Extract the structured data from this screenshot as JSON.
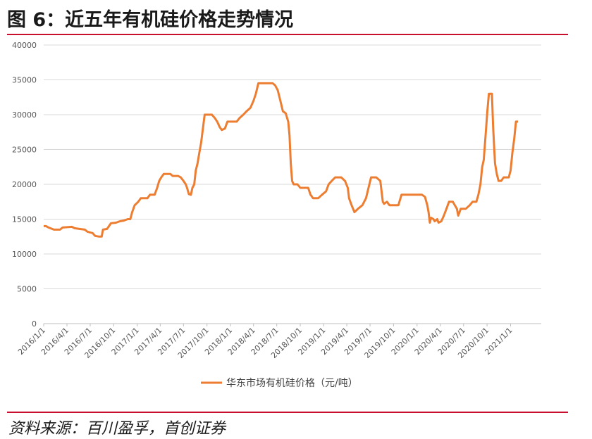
{
  "figure": {
    "title": "图 6：近五年有机硅价格走势情况",
    "source": "资料来源：百川盈孚，首创证券"
  },
  "colors": {
    "line": "#ed7d31",
    "rule": "#c8102e",
    "grid": "#d9d9d9"
  },
  "chart_data": {
    "type": "line",
    "ylim": [
      0,
      40000
    ],
    "yticks": [
      0,
      5000,
      10000,
      15000,
      20000,
      25000,
      30000,
      35000,
      40000
    ],
    "xlim": [
      "2016-01-01",
      "2021-05-01"
    ],
    "xticks": [
      "2016/1/1",
      "2016/4/1",
      "2016/7/1",
      "2016/10/1",
      "2017/1/1",
      "2017/4/1",
      "2017/7/1",
      "2017/10/1",
      "2018/1/1",
      "2018/4/1",
      "2018/7/1",
      "2018/10/1",
      "2019/1/1",
      "2019/4/1",
      "2019/7/1",
      "2019/10/1",
      "2020/1/1",
      "2020/4/1",
      "2020/7/1",
      "2020/10/1",
      "2021/1/1"
    ],
    "legend": "bottom",
    "series": [
      {
        "name": "华东市场有机硅价格（元/吨）",
        "points": [
          [
            "2016-01-01",
            14000
          ],
          [
            "2016-01-10",
            14000
          ],
          [
            "2016-01-20",
            13800
          ],
          [
            "2016-02-10",
            13500
          ],
          [
            "2016-03-05",
            13500
          ],
          [
            "2016-03-15",
            13800
          ],
          [
            "2016-04-20",
            13900
          ],
          [
            "2016-05-01",
            13700
          ],
          [
            "2016-05-20",
            13600
          ],
          [
            "2016-06-10",
            13500
          ],
          [
            "2016-06-20",
            13200
          ],
          [
            "2016-07-10",
            13000
          ],
          [
            "2016-07-20",
            12600
          ],
          [
            "2016-08-05",
            12500
          ],
          [
            "2016-08-15",
            12500
          ],
          [
            "2016-08-20",
            13500
          ],
          [
            "2016-09-05",
            13600
          ],
          [
            "2016-09-20",
            14400
          ],
          [
            "2016-10-10",
            14500
          ],
          [
            "2016-10-25",
            14700
          ],
          [
            "2016-11-10",
            14800
          ],
          [
            "2016-11-25",
            15000
          ],
          [
            "2016-12-05",
            15000
          ],
          [
            "2016-12-12",
            16000
          ],
          [
            "2016-12-22",
            17000
          ],
          [
            "2017-01-05",
            17500
          ],
          [
            "2017-01-15",
            18000
          ],
          [
            "2017-02-10",
            18000
          ],
          [
            "2017-02-20",
            18500
          ],
          [
            "2017-03-10",
            18500
          ],
          [
            "2017-03-20",
            19500
          ],
          [
            "2017-03-28",
            20500
          ],
          [
            "2017-04-05",
            21000
          ],
          [
            "2017-04-15",
            21500
          ],
          [
            "2017-05-10",
            21500
          ],
          [
            "2017-05-20",
            21200
          ],
          [
            "2017-06-10",
            21200
          ],
          [
            "2017-06-20",
            21000
          ],
          [
            "2017-07-01",
            20500
          ],
          [
            "2017-07-10",
            20000
          ],
          [
            "2017-07-15",
            19500
          ],
          [
            "2017-07-22",
            18600
          ],
          [
            "2017-07-30",
            18500
          ],
          [
            "2017-08-05",
            19500
          ],
          [
            "2017-08-12",
            20000
          ],
          [
            "2017-08-18",
            22000
          ],
          [
            "2017-08-25",
            23000
          ],
          [
            "2017-09-01",
            24500
          ],
          [
            "2017-09-08",
            26000
          ],
          [
            "2017-09-15",
            28000
          ],
          [
            "2017-09-22",
            30000
          ],
          [
            "2017-10-20",
            30000
          ],
          [
            "2017-11-01",
            29500
          ],
          [
            "2017-11-10",
            29000
          ],
          [
            "2017-11-20",
            28200
          ],
          [
            "2017-11-28",
            27800
          ],
          [
            "2017-12-10",
            28000
          ],
          [
            "2017-12-20",
            29000
          ],
          [
            "2018-01-10",
            29000
          ],
          [
            "2018-01-25",
            29000
          ],
          [
            "2018-02-05",
            29500
          ],
          [
            "2018-02-20",
            30000
          ],
          [
            "2018-03-05",
            30500
          ],
          [
            "2018-03-20",
            31000
          ],
          [
            "2018-04-01",
            32000
          ],
          [
            "2018-04-10",
            33000
          ],
          [
            "2018-04-20",
            34500
          ],
          [
            "2018-05-15",
            34500
          ],
          [
            "2018-06-15",
            34500
          ],
          [
            "2018-06-25",
            34200
          ],
          [
            "2018-07-05",
            33500
          ],
          [
            "2018-07-15",
            32000
          ],
          [
            "2018-07-25",
            30500
          ],
          [
            "2018-08-05",
            30200
          ],
          [
            "2018-08-15",
            29000
          ],
          [
            "2018-08-20",
            27000
          ],
          [
            "2018-08-25",
            23000
          ],
          [
            "2018-08-30",
            20500
          ],
          [
            "2018-09-05",
            20000
          ],
          [
            "2018-09-20",
            20000
          ],
          [
            "2018-10-01",
            19500
          ],
          [
            "2018-11-01",
            19500
          ],
          [
            "2018-11-10",
            18500
          ],
          [
            "2018-11-20",
            18000
          ],
          [
            "2018-12-10",
            18000
          ],
          [
            "2018-12-25",
            18500
          ],
          [
            "2019-01-10",
            19000
          ],
          [
            "2019-01-20",
            20000
          ],
          [
            "2019-02-01",
            20500
          ],
          [
            "2019-02-15",
            21000
          ],
          [
            "2019-03-10",
            21000
          ],
          [
            "2019-03-25",
            20500
          ],
          [
            "2019-04-05",
            19500
          ],
          [
            "2019-04-10",
            18000
          ],
          [
            "2019-04-20",
            17000
          ],
          [
            "2019-05-01",
            16000
          ],
          [
            "2019-05-15",
            16500
          ],
          [
            "2019-06-01",
            17000
          ],
          [
            "2019-06-15",
            18000
          ],
          [
            "2019-06-25",
            19500
          ],
          [
            "2019-07-05",
            21000
          ],
          [
            "2019-07-25",
            21000
          ],
          [
            "2019-08-10",
            20500
          ],
          [
            "2019-08-20",
            17500
          ],
          [
            "2019-08-25",
            17200
          ],
          [
            "2019-09-05",
            17500
          ],
          [
            "2019-09-15",
            17000
          ],
          [
            "2019-10-20",
            17000
          ],
          [
            "2019-11-01",
            18500
          ],
          [
            "2019-12-15",
            18500
          ],
          [
            "2020-01-20",
            18500
          ],
          [
            "2020-02-01",
            18200
          ],
          [
            "2020-02-10",
            17000
          ],
          [
            "2020-02-15",
            16000
          ],
          [
            "2020-02-20",
            14500
          ],
          [
            "2020-02-25",
            15200
          ],
          [
            "2020-03-05",
            15000
          ],
          [
            "2020-03-10",
            14700
          ],
          [
            "2020-03-20",
            15000
          ],
          [
            "2020-03-25",
            14500
          ],
          [
            "2020-04-05",
            14700
          ],
          [
            "2020-04-15",
            15500
          ],
          [
            "2020-04-25",
            16500
          ],
          [
            "2020-05-05",
            17500
          ],
          [
            "2020-05-20",
            17500
          ],
          [
            "2020-06-05",
            16500
          ],
          [
            "2020-06-10",
            15500
          ],
          [
            "2020-06-20",
            16500
          ],
          [
            "2020-07-10",
            16500
          ],
          [
            "2020-07-25",
            17000
          ],
          [
            "2020-08-05",
            17500
          ],
          [
            "2020-08-20",
            17500
          ],
          [
            "2020-08-28",
            18500
          ],
          [
            "2020-09-05",
            20000
          ],
          [
            "2020-09-12",
            22500
          ],
          [
            "2020-09-18",
            23500
          ],
          [
            "2020-09-25",
            27000
          ],
          [
            "2020-10-02",
            30500
          ],
          [
            "2020-10-08",
            33000
          ],
          [
            "2020-10-20",
            33000
          ],
          [
            "2020-10-25",
            28000
          ],
          [
            "2020-11-01",
            23000
          ],
          [
            "2020-11-08",
            21500
          ],
          [
            "2020-11-15",
            20500
          ],
          [
            "2020-11-25",
            20500
          ],
          [
            "2020-12-05",
            21000
          ],
          [
            "2020-12-25",
            21000
          ],
          [
            "2021-01-01",
            22000
          ],
          [
            "2021-01-08",
            24500
          ],
          [
            "2021-01-15",
            26500
          ],
          [
            "2021-01-22",
            29000
          ],
          [
            "2021-01-30",
            29000
          ]
        ]
      }
    ]
  }
}
